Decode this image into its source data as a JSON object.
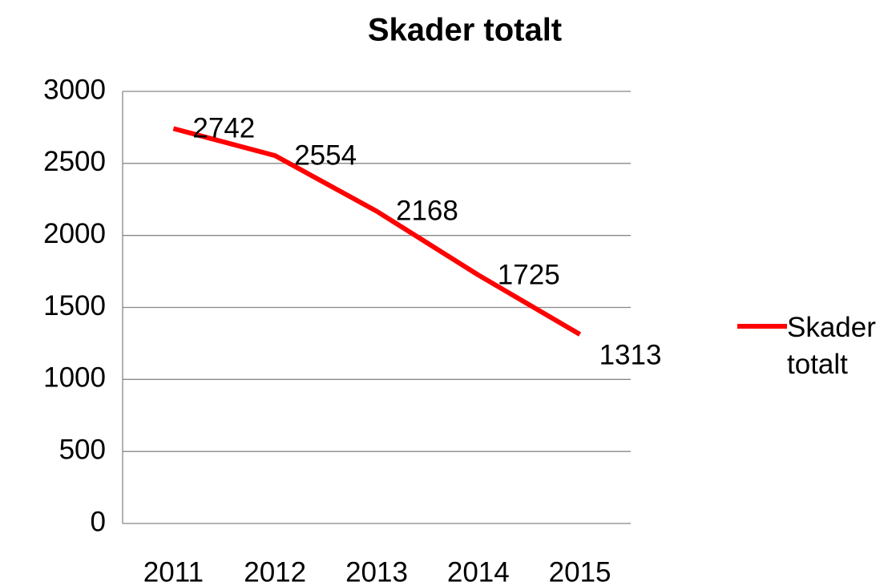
{
  "chart_data": {
    "type": "line",
    "title": "Skader totalt",
    "categories": [
      "2011",
      "2012",
      "2013",
      "2014",
      "2015"
    ],
    "series": [
      {
        "name": "Skader totalt",
        "color": "#ff0000",
        "values": [
          2742,
          2554,
          2168,
          1725,
          1313
        ]
      }
    ],
    "ylim": [
      0,
      3000
    ],
    "yticks": [
      0,
      500,
      1000,
      1500,
      2000,
      2500,
      3000
    ],
    "grid": true,
    "legend": "right"
  }
}
